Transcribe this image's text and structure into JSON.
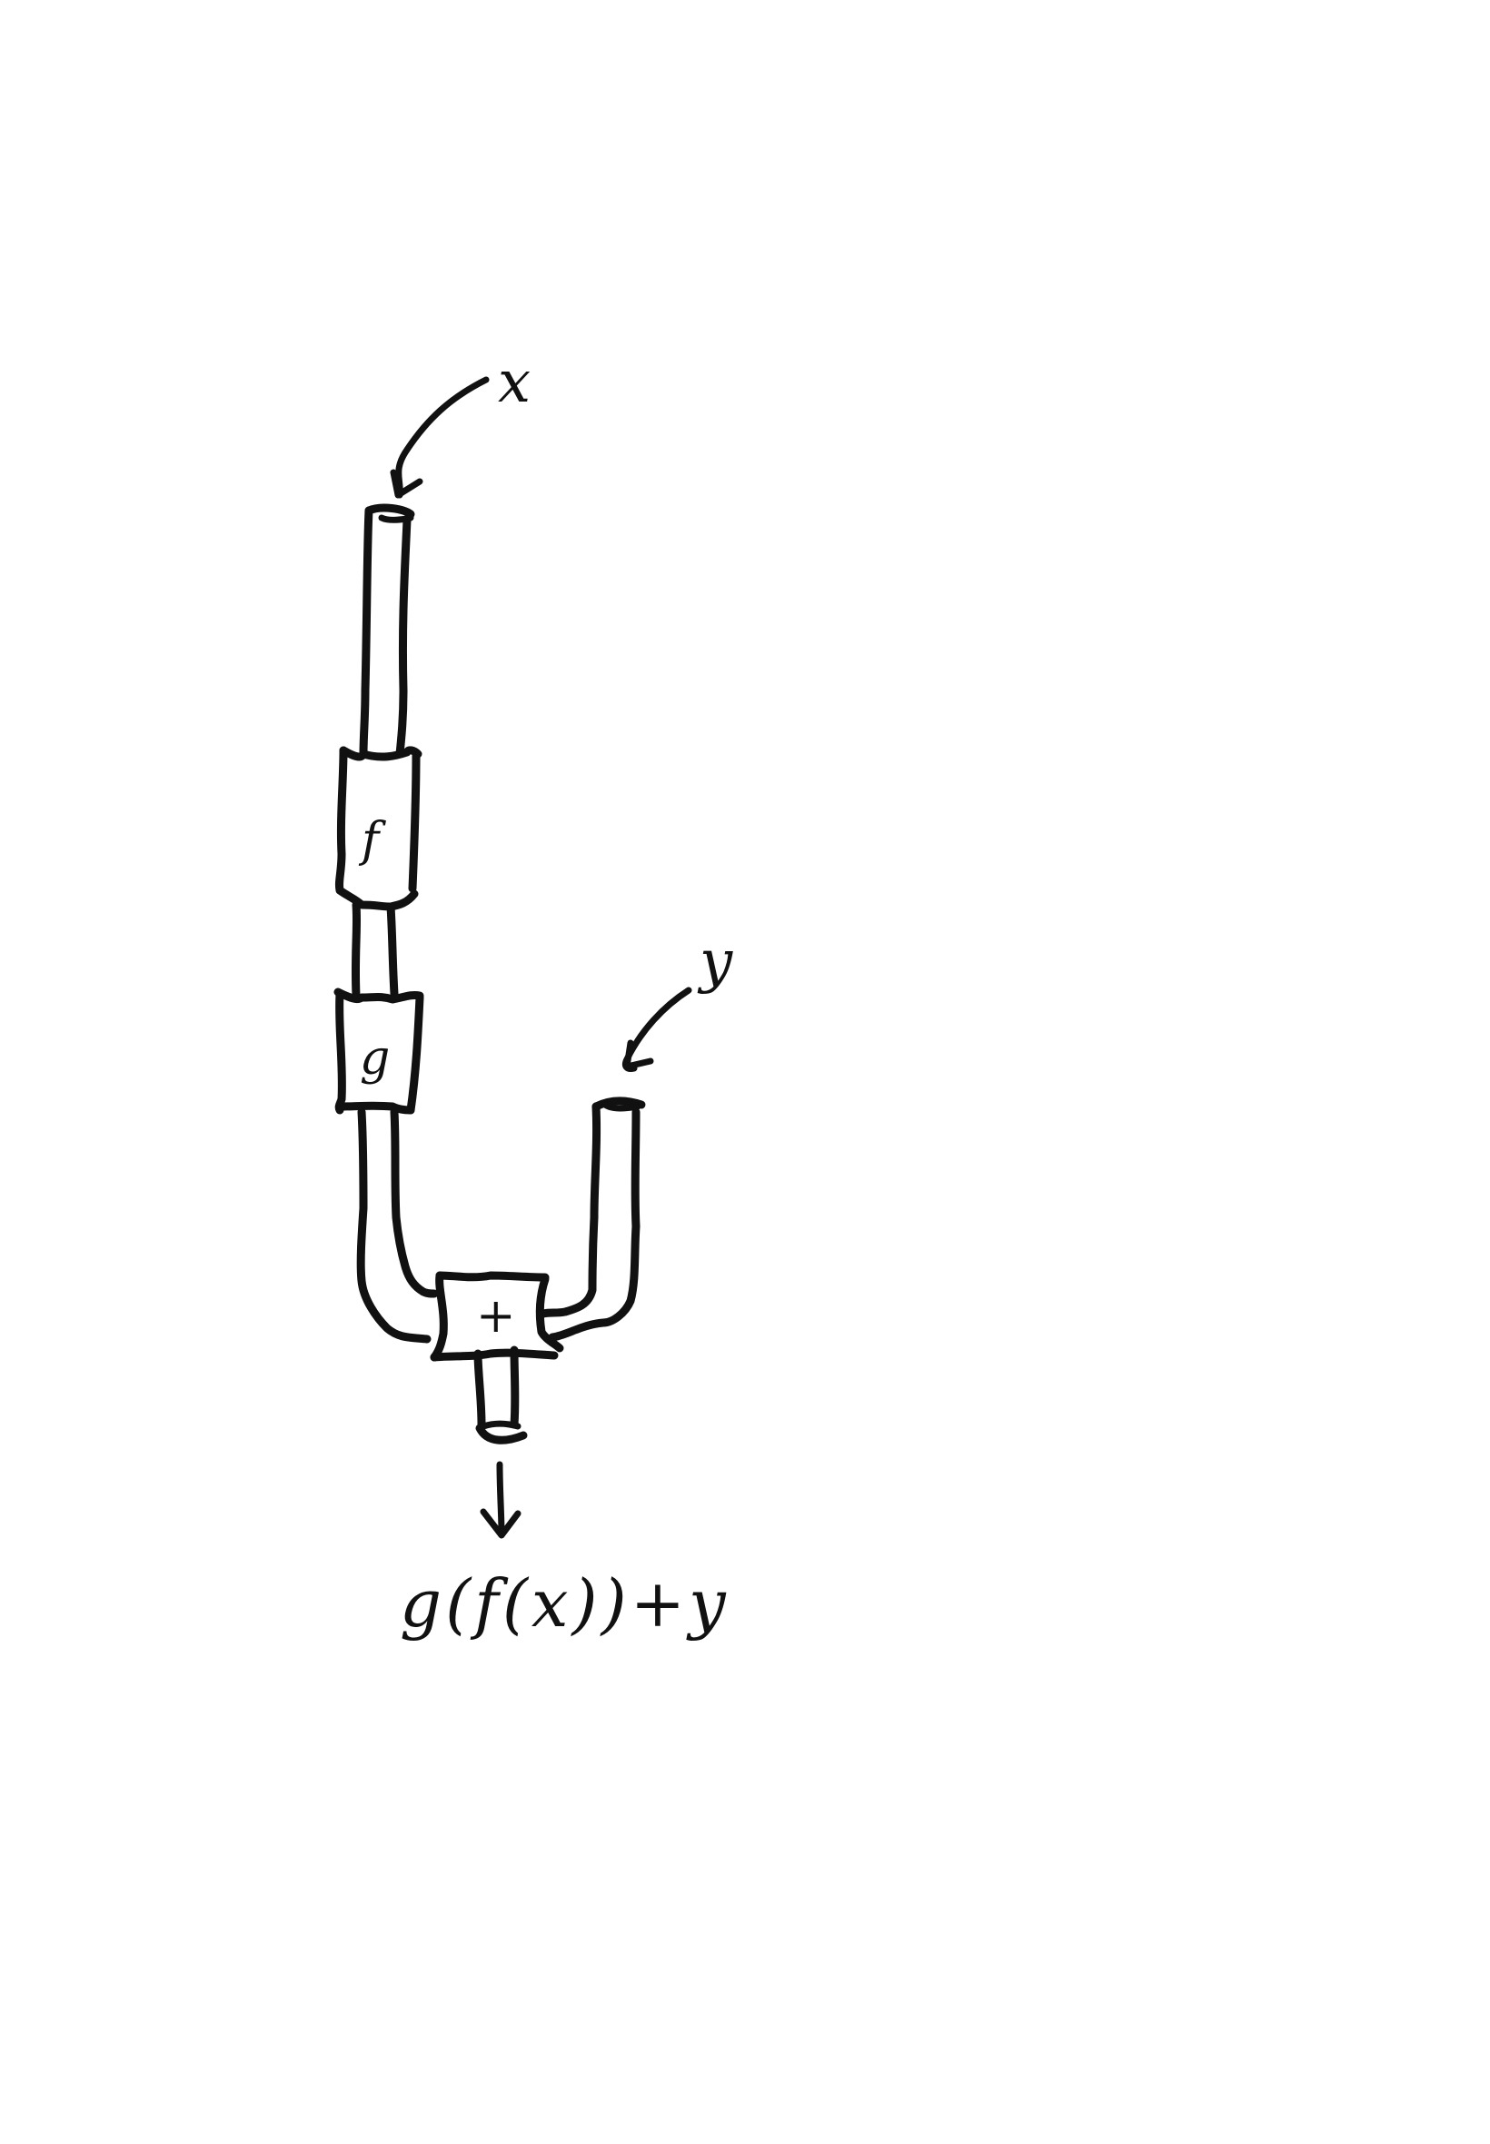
{
  "diagram": {
    "inputs": {
      "x": "x",
      "y": "y"
    },
    "blocks": {
      "f": "f",
      "g": "g",
      "plus": "+"
    },
    "output": "g(f(x))+y"
  }
}
